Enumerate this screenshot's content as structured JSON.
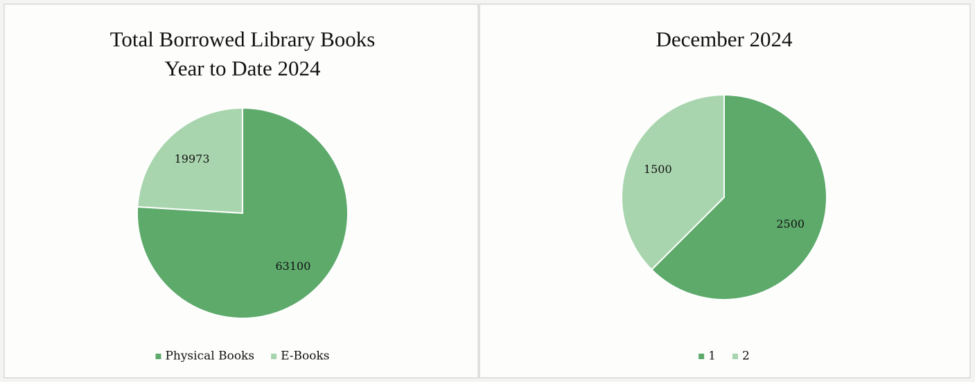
{
  "chart_data": [
    {
      "type": "pie",
      "title": [
        "Total Borrowed Library Books",
        "Year to Date 2024"
      ],
      "categories": [
        "Physical Books",
        "E-Books"
      ],
      "values": [
        63100,
        19973
      ],
      "colors": [
        "#5daa6b",
        "#a9d5ae"
      ],
      "legend": "bottom"
    },
    {
      "type": "pie",
      "title": [
        "December 2024"
      ],
      "categories": [
        "1",
        "2"
      ],
      "values": [
        2500,
        1500
      ],
      "colors": [
        "#5daa6b",
        "#a9d5ae"
      ],
      "legend": "bottom"
    }
  ]
}
